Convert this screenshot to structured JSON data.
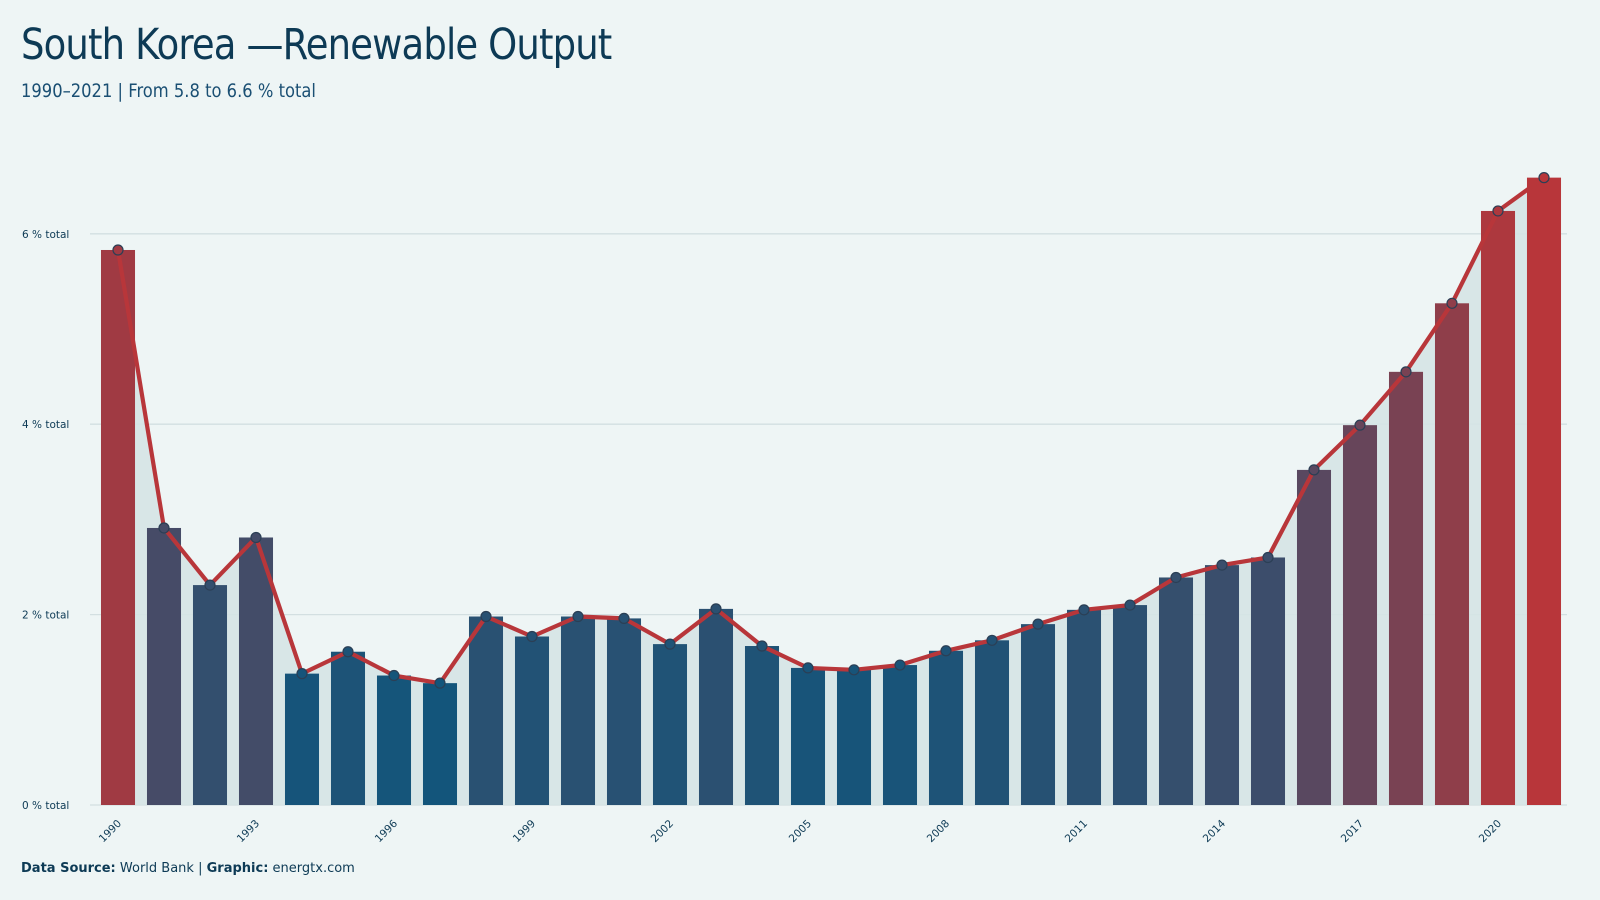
{
  "title": "South Korea —Renewable Output",
  "subtitle": "1990–2021 | From 5.8 to 6.6 % total",
  "footer": {
    "source_label": "Data Source:",
    "source_value": "World Bank",
    "separator": "|",
    "graphic_label": "Graphic:",
    "graphic_value": "energtx.com"
  },
  "colors": {
    "background": "#eef5f5",
    "low": "#13557b",
    "high": "#b8363a",
    "line": "#b8363a",
    "area": "#d5e4e5",
    "grid": "#d3dfe1",
    "marker": "#2f5777"
  },
  "chart_data": {
    "type": "bar",
    "x": [
      1990,
      1991,
      1992,
      1993,
      1994,
      1995,
      1996,
      1997,
      1998,
      1999,
      2000,
      2001,
      2002,
      2003,
      2004,
      2005,
      2006,
      2007,
      2008,
      2009,
      2010,
      2011,
      2012,
      2013,
      2014,
      2015,
      2016,
      2017,
      2018,
      2019,
      2020,
      2021
    ],
    "values": [
      5.83,
      2.91,
      2.31,
      2.81,
      1.38,
      1.61,
      1.36,
      1.28,
      1.98,
      1.77,
      1.98,
      1.96,
      1.69,
      2.06,
      1.67,
      1.44,
      1.42,
      1.47,
      1.62,
      1.73,
      1.9,
      2.05,
      2.1,
      2.39,
      2.52,
      2.6,
      3.52,
      3.99,
      4.55,
      5.27,
      6.24,
      6.59
    ],
    "x_tick_labels": [
      "1990",
      "1993",
      "1996",
      "1999",
      "2002",
      "2005",
      "2008",
      "2011",
      "2014",
      "2017",
      "2020"
    ],
    "y_ticks": [
      0,
      2,
      4,
      6
    ],
    "y_tick_labels": [
      "0 % total",
      "2 % total",
      "4 % total",
      "6 % total"
    ],
    "ylim": [
      0,
      6.85
    ],
    "overlay": "line with markers",
    "grid": "horizontal",
    "legend": "none"
  }
}
